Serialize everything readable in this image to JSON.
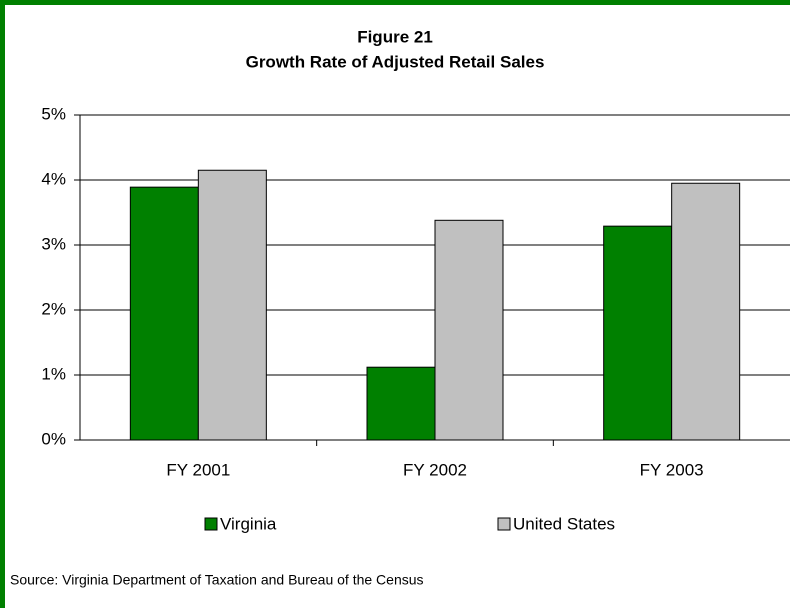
{
  "chart_data": {
    "type": "bar",
    "title": "Figure 21",
    "subtitle": "Growth Rate of Adjusted Retail Sales",
    "categories": [
      "FY 2001",
      "FY 2002",
      "FY 2003"
    ],
    "series": [
      {
        "name": "Virginia",
        "color": "#008000",
        "values": [
          3.89,
          1.12,
          3.29
        ]
      },
      {
        "name": "United States",
        "color": "#c0c0c0",
        "values": [
          4.15,
          3.38,
          3.95
        ]
      }
    ],
    "ylim": [
      0,
      5
    ],
    "yticks": [
      {
        "value": 0,
        "label": "0%"
      },
      {
        "value": 1,
        "label": "1%"
      },
      {
        "value": 2,
        "label": "2%"
      },
      {
        "value": 3,
        "label": "3%"
      },
      {
        "value": 4,
        "label": "4%"
      },
      {
        "value": 5,
        "label": "5%"
      }
    ],
    "grid": true,
    "legend": "bottom",
    "source": "Source:  Virginia Department of Taxation and Bureau of the Census"
  }
}
